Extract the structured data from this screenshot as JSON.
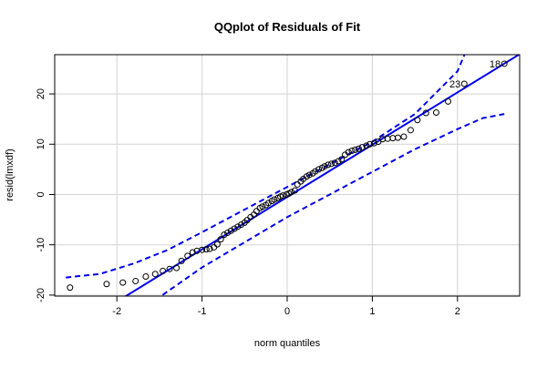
{
  "chart_data": {
    "type": "qqplot",
    "title": "QQplot of Residuals of Fit",
    "x_label": "norm quantiles",
    "y_label": "resid(lmxdf)",
    "xlim": [
      -2.73,
      2.73
    ],
    "ylim": [
      -20.2,
      27.8
    ],
    "xticks": [
      -2,
      -1,
      0,
      1,
      2
    ],
    "yticks": [
      -20,
      -10,
      0,
      10,
      20
    ],
    "grid": true,
    "point_color": "#000000",
    "line_color": "#0000ee",
    "x": [
      -2.55,
      -2.12,
      -1.93,
      -1.78,
      -1.66,
      -1.55,
      -1.46,
      -1.38,
      -1.3,
      -1.24,
      -1.17,
      -1.11,
      -1.06,
      -1.0,
      -0.95,
      -0.91,
      -0.86,
      -0.82,
      -0.78,
      -0.74,
      -0.7,
      -0.66,
      -0.62,
      -0.58,
      -0.54,
      -0.5,
      -0.47,
      -0.43,
      -0.39,
      -0.36,
      -0.32,
      -0.29,
      -0.25,
      -0.22,
      -0.18,
      -0.15,
      -0.11,
      -0.08,
      -0.05,
      -0.01,
      0.02,
      0.05,
      0.09,
      0.12,
      0.16,
      0.19,
      0.23,
      0.26,
      0.3,
      0.33,
      0.37,
      0.41,
      0.44,
      0.48,
      0.52,
      0.56,
      0.6,
      0.64,
      0.68,
      0.72,
      0.76,
      0.8,
      0.84,
      0.88,
      0.93,
      0.97,
      1.02,
      1.07,
      1.12,
      1.18,
      1.24,
      1.3,
      1.37,
      1.45,
      1.53,
      1.63,
      1.75,
      1.89,
      2.08,
      2.55
    ],
    "values": [
      -18.5,
      -17.8,
      -17.5,
      -17.2,
      -16.3,
      -15.8,
      -15.2,
      -14.8,
      -14.6,
      -13.2,
      -12.2,
      -11.5,
      -11.2,
      -11.0,
      -10.9,
      -10.8,
      -10.5,
      -9.9,
      -8.9,
      -8.0,
      -7.6,
      -7.2,
      -6.8,
      -6.4,
      -6.0,
      -5.6,
      -5.1,
      -4.5,
      -4.0,
      -3.3,
      -2.7,
      -2.4,
      -2.1,
      -1.7,
      -1.3,
      -1.0,
      -0.7,
      -0.4,
      -0.2,
      0.0,
      0.2,
      0.5,
      0.8,
      2.0,
      2.6,
      3.1,
      3.6,
      3.9,
      4.2,
      4.6,
      5.0,
      5.3,
      5.6,
      5.9,
      6.1,
      6.3,
      6.6,
      7.0,
      7.9,
      8.4,
      8.7,
      8.9,
      9.1,
      9.4,
      9.7,
      10.0,
      10.2,
      10.5,
      11.0,
      11.1,
      11.2,
      11.3,
      11.5,
      12.8,
      14.8,
      16.2,
      16.3,
      18.5,
      22.0,
      26.0
    ],
    "point_labels": [
      null,
      null,
      null,
      null,
      null,
      null,
      null,
      null,
      null,
      null,
      null,
      null,
      null,
      null,
      null,
      null,
      null,
      null,
      null,
      null,
      null,
      null,
      null,
      null,
      null,
      null,
      null,
      null,
      null,
      null,
      null,
      null,
      null,
      null,
      null,
      null,
      null,
      null,
      null,
      null,
      null,
      null,
      null,
      null,
      null,
      null,
      null,
      null,
      null,
      null,
      null,
      null,
      null,
      null,
      null,
      null,
      null,
      null,
      null,
      null,
      null,
      null,
      null,
      null,
      null,
      null,
      null,
      null,
      null,
      null,
      null,
      null,
      null,
      null,
      null,
      null,
      null,
      null,
      "23",
      "18"
    ],
    "reference_line": {
      "intercept": -0.5,
      "slope": 10.4
    },
    "bands": [
      {
        "x": [
          -2.6,
          -2.2,
          -1.8,
          -1.4,
          -1.0,
          -0.5,
          0,
          0.5,
          1.0,
          1.5,
          2.0,
          2.1
        ],
        "values": [
          -16.5,
          -15.8,
          -13.7,
          -11.0,
          -7.5,
          -3.0,
          1.5,
          6.0,
          10.5,
          16.0,
          24.5,
          28.5
        ]
      },
      {
        "x": [
          -1.55,
          -1.0,
          -0.5,
          0,
          0.5,
          1.0,
          1.5,
          2.0,
          2.3,
          2.55
        ],
        "values": [
          -21.0,
          -14.5,
          -9.5,
          -4.5,
          0.0,
          4.5,
          9.0,
          13.0,
          15.2,
          16.0
        ]
      }
    ]
  }
}
